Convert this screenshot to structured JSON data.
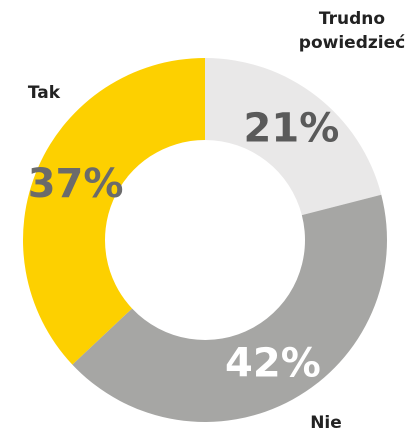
{
  "chart_data": {
    "type": "pie",
    "donut": true,
    "categories": [
      "Trudno powiedzieć",
      "Nie",
      "Tak"
    ],
    "values": [
      21,
      42,
      37
    ],
    "value_labels": [
      "21%",
      "42%",
      "37%"
    ],
    "label_lines": [
      [
        "Trudno",
        "powiedzieć"
      ],
      [
        "Nie"
      ],
      [
        "Tak"
      ]
    ],
    "colors": [
      "#e9e8e8",
      "#a6a6a4",
      "#fdd000"
    ],
    "value_label_colors": [
      "#5a5a5a",
      "#ffffff",
      "#6b6b6b"
    ],
    "start": "top",
    "direction": "clockwise",
    "legend": "none",
    "title": ""
  }
}
